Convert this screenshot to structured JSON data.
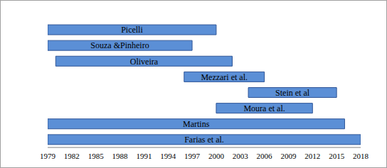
{
  "chart_data": {
    "type": "bar",
    "orientation": "horizontal",
    "categories": [
      "Picelli",
      "Souza &Pinheiro",
      "Oliveira",
      "Mezzari et al.",
      "Stein et al",
      "Moura et al.",
      "Martins",
      "Farias et al."
    ],
    "values": [
      [
        1979,
        2000
      ],
      [
        1979,
        1997
      ],
      [
        1980,
        2002
      ],
      [
        1996,
        2006
      ],
      [
        2004,
        2015
      ],
      [
        2000,
        2012
      ],
      [
        1979,
        2016
      ],
      [
        1979,
        2018
      ]
    ],
    "color": "#5b8fd6",
    "xlim": [
      1979,
      2018
    ],
    "xticks": [
      1979,
      1982,
      1985,
      1988,
      1991,
      1994,
      1997,
      2000,
      2003,
      2006,
      2009,
      2012,
      2015,
      2018
    ],
    "grid": false,
    "tick_labels": "x"
  }
}
